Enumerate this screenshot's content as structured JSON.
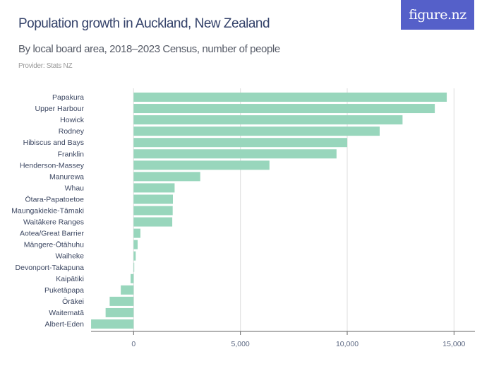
{
  "header": {
    "title": "Population growth in Auckland, New Zealand",
    "subtitle": "By local board area, 2018–2023 Census, number of people",
    "provider": "Provider: Stats NZ",
    "logo_text": "figure.nz"
  },
  "colors": {
    "bar": "#98d6bc",
    "title": "#34426a",
    "logo_bg": "#5560c9",
    "grid": "#e2e2e2",
    "axis": "#666666"
  },
  "chart_data": {
    "type": "bar",
    "orientation": "horizontal",
    "title": "Population growth in Auckland, New Zealand",
    "subtitle": "By local board area, 2018–2023 Census, number of people",
    "categories": [
      "Papakura",
      "Upper Harbour",
      "Howick",
      "Rodney",
      "Hibiscus and Bays",
      "Franklin",
      "Henderson-Massey",
      "Manurewa",
      "Whau",
      "Ōtara-Papatoetoe",
      "Maungakiekie-Tāmaki",
      "Waitākere Ranges",
      "Aotea/Great Barrier",
      "Māngere-Ōtāhuhu",
      "Waiheke",
      "Devonport-Takapuna",
      "Kaipātiki",
      "Puketāpapa",
      "Ōrākei",
      "Waitematā",
      "Albert-Eden"
    ],
    "values": [
      14660,
      14100,
      12590,
      11520,
      10000,
      9500,
      6360,
      3120,
      1920,
      1840,
      1830,
      1810,
      320,
      190,
      100,
      30,
      -140,
      -600,
      -1120,
      -1310,
      -1990
    ],
    "xlim": [
      -2000,
      16000
    ],
    "xticks": [
      0,
      5000,
      10000,
      15000
    ],
    "xtick_labels": [
      "0",
      "5,000",
      "10,000",
      "15,000"
    ],
    "grid": "vertical",
    "legend": "none"
  }
}
